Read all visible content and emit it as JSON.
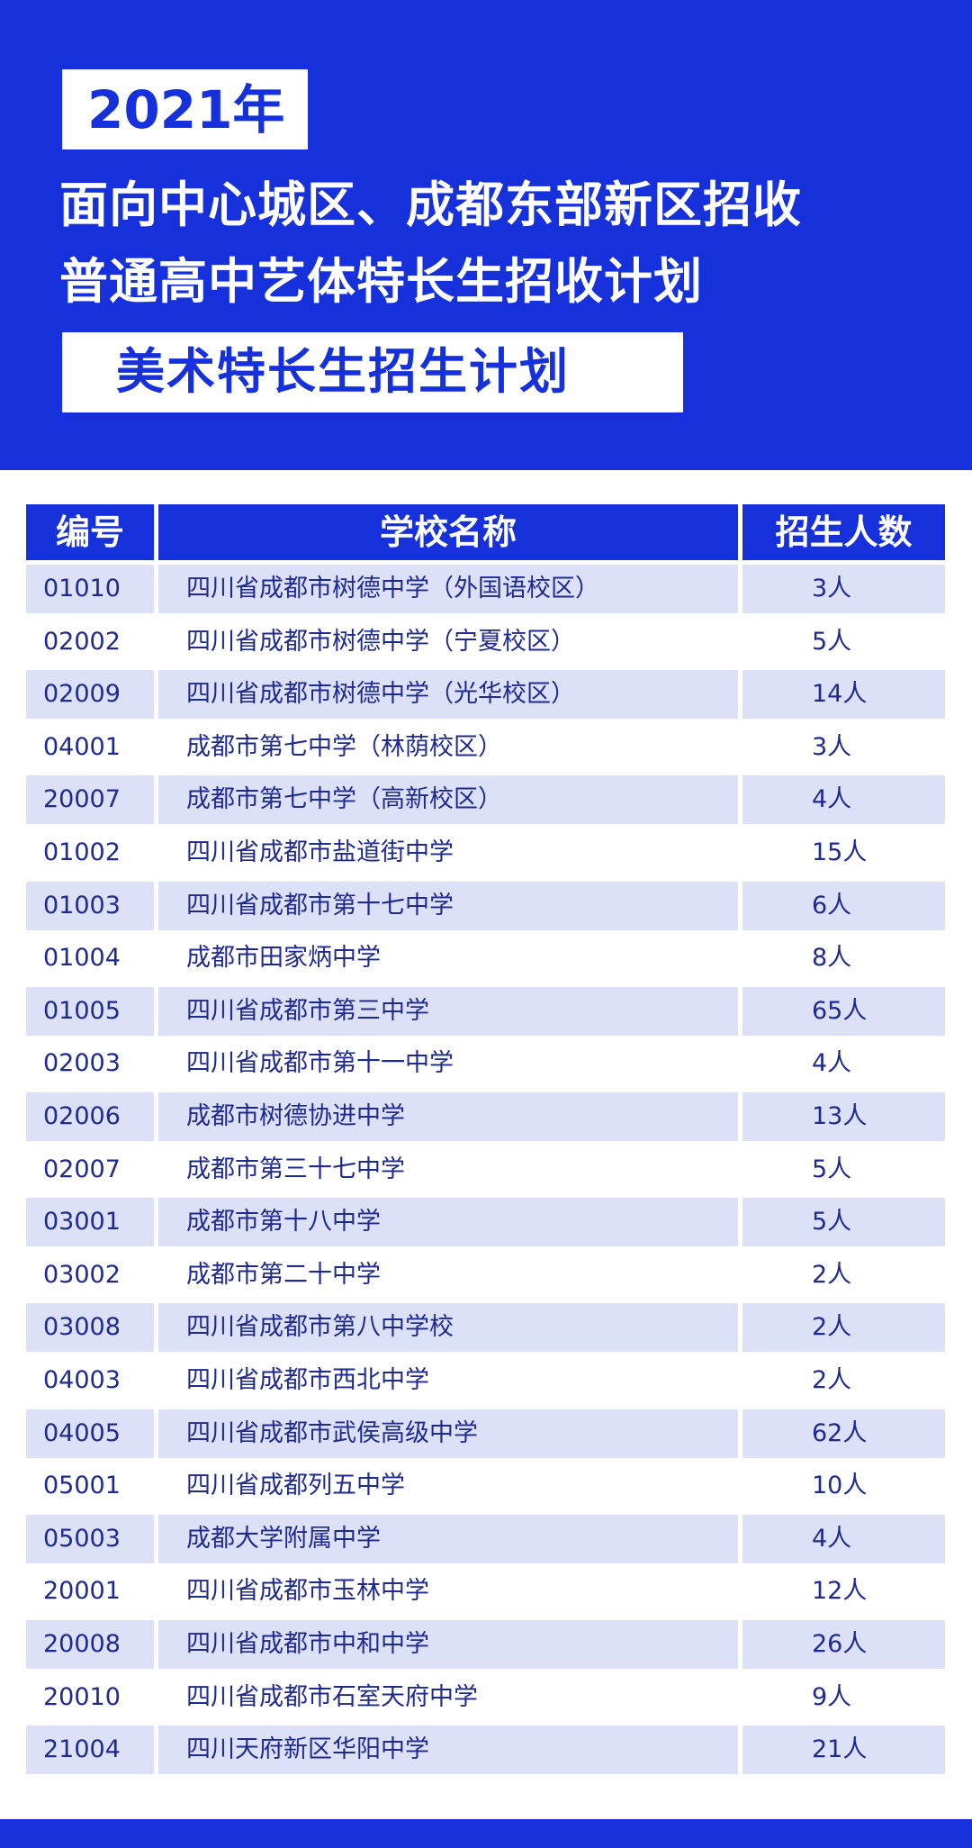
{
  "header": {
    "year": "2021年",
    "title_line1": "面向中心城区、成都东部新区招收",
    "title_line2": "普通高中艺体特长生招收计划",
    "subtitle": "美术特长生招生计划"
  },
  "colors": {
    "brand_blue": "#1630dc",
    "row_shade": "#dde1f8",
    "text": "#1f2a8f"
  },
  "table": {
    "columns": [
      "编号",
      "学校名称",
      "招生人数"
    ],
    "rows": [
      {
        "code": "01010",
        "school": "四川省成都市树德中学（外国语校区）",
        "count": "3人"
      },
      {
        "code": "02002",
        "school": "四川省成都市树德中学（宁夏校区）",
        "count": "5人"
      },
      {
        "code": "02009",
        "school": "四川省成都市树德中学（光华校区）",
        "count": "14人"
      },
      {
        "code": "04001",
        "school": "成都市第七中学（林荫校区）",
        "count": "3人"
      },
      {
        "code": "20007",
        "school": "成都市第七中学（高新校区）",
        "count": "4人"
      },
      {
        "code": "01002",
        "school": "四川省成都市盐道街中学",
        "count": "15人"
      },
      {
        "code": "01003",
        "school": "四川省成都市第十七中学",
        "count": "6人"
      },
      {
        "code": "01004",
        "school": "成都市田家炳中学",
        "count": "8人"
      },
      {
        "code": "01005",
        "school": "四川省成都市第三中学",
        "count": "65人"
      },
      {
        "code": "02003",
        "school": "四川省成都市第十一中学",
        "count": "4人"
      },
      {
        "code": "02006",
        "school": "成都市树德协进中学",
        "count": "13人"
      },
      {
        "code": "02007",
        "school": "成都市第三十七中学",
        "count": "5人"
      },
      {
        "code": "03001",
        "school": "成都市第十八中学",
        "count": "5人"
      },
      {
        "code": "03002",
        "school": "成都市第二十中学",
        "count": "2人"
      },
      {
        "code": "03008",
        "school": "四川省成都市第八中学校",
        "count": "2人"
      },
      {
        "code": "04003",
        "school": "四川省成都市西北中学",
        "count": "2人"
      },
      {
        "code": "04005",
        "school": "四川省成都市武侯高级中学",
        "count": "62人"
      },
      {
        "code": "05001",
        "school": "四川省成都列五中学",
        "count": "10人"
      },
      {
        "code": "05003",
        "school": "成都大学附属中学",
        "count": "4人"
      },
      {
        "code": "20001",
        "school": "四川省成都市玉林中学",
        "count": "12人"
      },
      {
        "code": "20008",
        "school": "四川省成都市中和中学",
        "count": "26人"
      },
      {
        "code": "20010",
        "school": "四川省成都市石室天府中学",
        "count": "9人"
      },
      {
        "code": "21004",
        "school": "四川天府新区华阳中学",
        "count": "21人"
      }
    ]
  }
}
